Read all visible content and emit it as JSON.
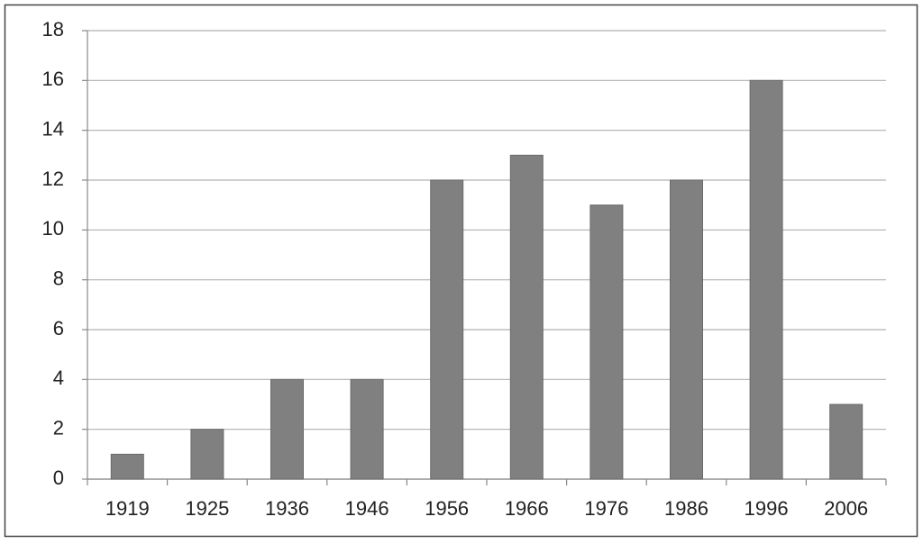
{
  "chart_data": {
    "type": "bar",
    "categories": [
      "1919",
      "1925",
      "1936",
      "1946",
      "1956",
      "1966",
      "1976",
      "1986",
      "1996",
      "2006"
    ],
    "values": [
      1,
      2,
      4,
      4,
      12,
      13,
      11,
      12,
      16,
      3
    ],
    "color": "#808080",
    "ylim": [
      0,
      18
    ],
    "yticks": [
      0,
      2,
      4,
      6,
      8,
      10,
      12,
      14,
      16,
      18
    ],
    "grid": true
  }
}
